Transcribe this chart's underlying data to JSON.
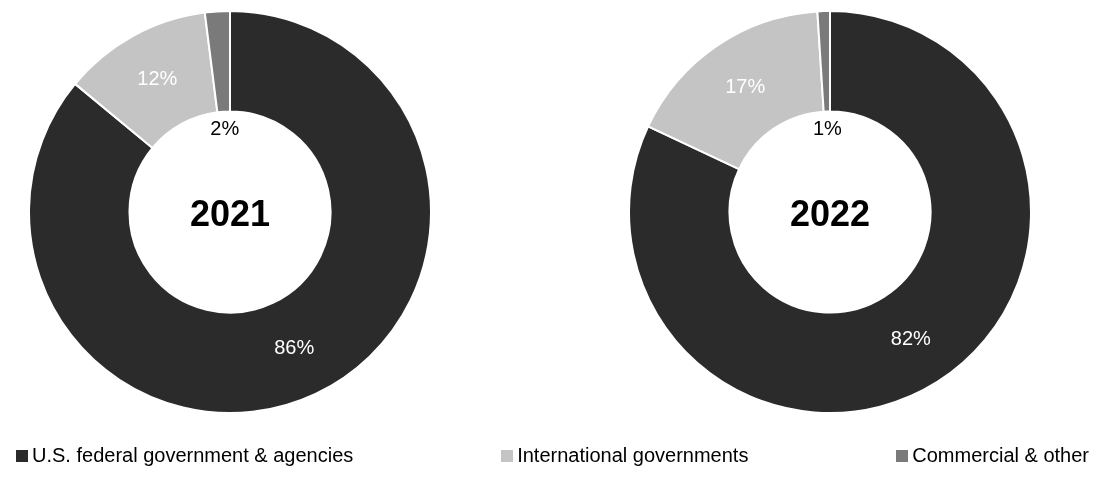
{
  "chart_data": [
    {
      "type": "donut",
      "title": "2021",
      "categories": [
        "U.S. federal government & agencies",
        "International governments",
        "Commercial & other"
      ],
      "values": [
        86,
        12,
        2
      ],
      "colors": [
        "#2b2b2b",
        "#c4c4c4",
        "#7a7a7a"
      ],
      "value_labels": [
        "86%",
        "12%",
        "2%"
      ],
      "legend": "bottom"
    },
    {
      "type": "donut",
      "title": "2022",
      "categories": [
        null,
        null,
        null
      ],
      "values": [
        82,
        17,
        1
      ],
      "colors": [
        "#2b2b2b",
        "#c4c4c4",
        "#7a7a7a"
      ],
      "value_labels": [
        "82%",
        "17%",
        "1%"
      ]
    }
  ]
}
